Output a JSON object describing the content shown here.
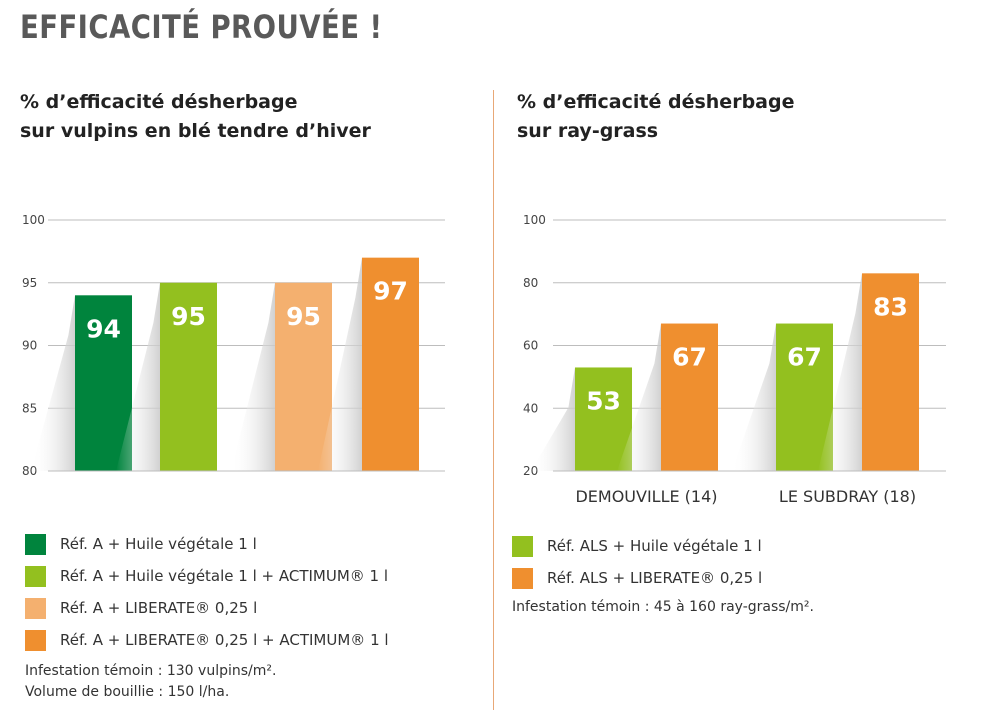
{
  "page": {
    "title": "EFFICACITÉ PROUVÉE !"
  },
  "left": {
    "title_line1": "% d’efficacité désherbage",
    "title_line2": "sur vulpins en blé tendre d’hiver",
    "legend": [
      {
        "label": "Réf. A + Huile végétale 1 l",
        "color": "#00843d"
      },
      {
        "label": "Réf. A + Huile végétale 1 l + ACTIMUM® 1 l",
        "color": "#93c01f"
      },
      {
        "label": "Réf. A + LIBERATE® 0,25 l",
        "color": "#f4b06f"
      },
      {
        "label": "Réf. A + LIBERATE® 0,25 l + ACTIMUM® 1 l",
        "color": "#ef8f2f"
      }
    ],
    "note_line1": "Infestation témoin : 130 vulpins/m².",
    "note_line2": "Volume de bouillie : 150 l/ha."
  },
  "right": {
    "title_line1": "% d’efficacité désherbage",
    "title_line2": "sur ray-grass",
    "legend": [
      {
        "label": "Réf. ALS + Huile végétale 1 l",
        "color": "#93c01f"
      },
      {
        "label": "Réf. ALS + LIBERATE® 0,25 l",
        "color": "#ef8f2f"
      }
    ],
    "note_line1": "Infestation témoin : 45 à 160 ray-grass/m²."
  },
  "chart_data": [
    {
      "type": "bar",
      "title": "% d’efficacité désherbage sur vulpins en blé tendre d’hiver",
      "ylim": [
        80,
        100
      ],
      "yticks": [
        80,
        85,
        90,
        95,
        100
      ],
      "grid": true,
      "bars": [
        {
          "value": 94,
          "color": "#00843d"
        },
        {
          "value": 95,
          "color": "#93c01f"
        },
        {
          "value": 95,
          "color": "#f4b06f"
        },
        {
          "value": 97,
          "color": "#ef8f2f"
        }
      ]
    },
    {
      "type": "bar",
      "title": "% d’efficacité désherbage sur ray-grass",
      "ylim": [
        20,
        100
      ],
      "yticks": [
        20,
        40,
        60,
        80,
        100
      ],
      "grid": true,
      "categories": [
        "DEMOUVILLE (14)",
        "LE SUBDRAY (18)"
      ],
      "series": [
        {
          "name": "Réf. ALS + Huile végétale 1 l",
          "color": "#93c01f",
          "values": [
            53,
            67
          ]
        },
        {
          "name": "Réf. ALS + LIBERATE® 0,25 l",
          "color": "#ef8f2f",
          "values": [
            67,
            83
          ]
        }
      ]
    }
  ]
}
